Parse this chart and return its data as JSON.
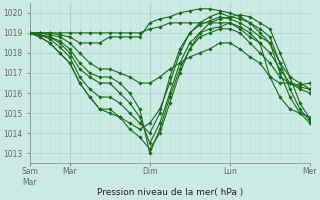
{
  "xlabel": "Pression niveau de la mer( hPa )",
  "background_color": "#cceae4",
  "grid_color_major": "#aad4cc",
  "grid_color_minor": "#bbddd8",
  "line_color": "#1a6b1a",
  "ylim": [
    1012.5,
    1020.5
  ],
  "xlim": [
    0,
    168
  ],
  "yticks": [
    1013,
    1014,
    1015,
    1016,
    1017,
    1018,
    1019,
    1020
  ],
  "day_positions": [
    0,
    24,
    72,
    120,
    168
  ],
  "day_labels": [
    "Sam|Mar",
    "Mar",
    "Dim",
    "Lun",
    "Mer"
  ],
  "series": [
    {
      "x": [
        0,
        6,
        12,
        18,
        24,
        30,
        36,
        42,
        48,
        54,
        60,
        66,
        72,
        78,
        84,
        90,
        96,
        102,
        108,
        114,
        120,
        126,
        132,
        138,
        144,
        150,
        156,
        162,
        168
      ],
      "y": [
        1019.0,
        1018.8,
        1018.5,
        1018.0,
        1017.5,
        1016.5,
        1015.8,
        1015.2,
        1015.0,
        1014.8,
        1014.2,
        1013.8,
        1013.2,
        1014.0,
        1015.5,
        1017.0,
        1018.2,
        1019.0,
        1019.5,
        1019.7,
        1019.8,
        1019.9,
        1019.8,
        1019.5,
        1019.2,
        1018.0,
        1016.8,
        1015.5,
        1014.7
      ]
    },
    {
      "x": [
        0,
        6,
        12,
        18,
        24,
        30,
        36,
        42,
        48,
        54,
        60,
        66,
        72,
        78,
        84,
        90,
        96,
        102,
        108,
        114,
        120,
        126,
        132,
        138,
        144,
        150,
        156,
        162,
        168
      ],
      "y": [
        1019.0,
        1018.8,
        1018.5,
        1018.0,
        1017.5,
        1016.5,
        1015.8,
        1015.2,
        1015.2,
        1014.8,
        1014.5,
        1014.2,
        1014.5,
        1015.2,
        1016.5,
        1018.0,
        1019.0,
        1019.5,
        1019.8,
        1020.0,
        1019.8,
        1019.7,
        1019.5,
        1019.2,
        1018.8,
        1017.5,
        1016.2,
        1015.2,
        1014.6
      ]
    },
    {
      "x": [
        0,
        6,
        12,
        18,
        24,
        30,
        36,
        42,
        48,
        54,
        60,
        66,
        72,
        78,
        84,
        90,
        96,
        102,
        108,
        114,
        120,
        126,
        132,
        138,
        144,
        150,
        156,
        162,
        168
      ],
      "y": [
        1019.0,
        1018.9,
        1018.7,
        1018.3,
        1017.8,
        1016.8,
        1016.2,
        1015.8,
        1015.8,
        1015.5,
        1015.0,
        1014.5,
        1014.0,
        1015.0,
        1016.8,
        1018.2,
        1019.0,
        1019.4,
        1019.6,
        1019.8,
        1019.7,
        1019.5,
        1019.2,
        1018.8,
        1018.5,
        1017.0,
        1015.8,
        1015.0,
        1014.5
      ]
    },
    {
      "x": [
        0,
        6,
        12,
        18,
        24,
        30,
        36,
        42,
        48,
        54,
        60,
        66,
        72,
        78,
        84,
        90,
        96,
        102,
        108,
        114,
        120,
        126,
        132,
        138,
        144,
        150,
        156,
        162,
        168
      ],
      "y": [
        1019.0,
        1018.9,
        1018.8,
        1018.5,
        1018.0,
        1017.2,
        1016.8,
        1016.5,
        1016.5,
        1016.0,
        1015.5,
        1014.8,
        1013.5,
        1014.5,
        1016.0,
        1017.5,
        1018.5,
        1019.0,
        1019.2,
        1019.3,
        1019.5,
        1019.2,
        1018.8,
        1018.5,
        1018.0,
        1017.2,
        1016.5,
        1016.2,
        1016.0
      ]
    },
    {
      "x": [
        0,
        6,
        12,
        18,
        24,
        30,
        36,
        42,
        48,
        54,
        60,
        66,
        72,
        78,
        84,
        90,
        96,
        102,
        108,
        114,
        120,
        126,
        132,
        138,
        144,
        150,
        156,
        162,
        168
      ],
      "y": [
        1019.0,
        1018.9,
        1018.8,
        1018.6,
        1018.2,
        1017.5,
        1017.0,
        1016.8,
        1016.8,
        1016.5,
        1016.0,
        1015.2,
        1013.0,
        1014.2,
        1015.8,
        1017.2,
        1018.2,
        1018.8,
        1019.0,
        1019.2,
        1019.2,
        1019.0,
        1018.5,
        1018.0,
        1017.5,
        1016.8,
        1016.5,
        1016.3,
        1016.2
      ]
    },
    {
      "x": [
        0,
        6,
        12,
        18,
        24,
        30,
        36,
        42,
        48,
        54,
        60,
        66,
        72,
        78,
        84,
        90,
        96,
        102,
        108,
        114,
        120,
        126,
        132,
        138,
        144,
        150,
        156,
        162,
        168
      ],
      "y": [
        1019.0,
        1019.0,
        1019.0,
        1018.9,
        1018.8,
        1018.5,
        1018.5,
        1018.5,
        1018.8,
        1018.8,
        1018.8,
        1018.8,
        1019.5,
        1019.7,
        1019.8,
        1020.0,
        1020.1,
        1020.2,
        1020.2,
        1020.1,
        1020.0,
        1019.8,
        1019.5,
        1019.0,
        1018.5,
        1017.5,
        1016.8,
        1016.5,
        1016.2
      ]
    },
    {
      "x": [
        0,
        6,
        12,
        18,
        24,
        30,
        36,
        42,
        48,
        54,
        60,
        66,
        72,
        78,
        84,
        90,
        96,
        102,
        108,
        114,
        120,
        126,
        132,
        138,
        144,
        150,
        156,
        162,
        168
      ],
      "y": [
        1019.0,
        1019.0,
        1019.0,
        1019.0,
        1019.0,
        1019.0,
        1019.0,
        1019.0,
        1019.0,
        1019.0,
        1019.0,
        1019.0,
        1019.2,
        1019.3,
        1019.5,
        1019.5,
        1019.5,
        1019.5,
        1019.5,
        1019.5,
        1019.5,
        1019.3,
        1019.0,
        1018.5,
        1016.8,
        1015.8,
        1015.2,
        1015.0,
        1014.8
      ]
    },
    {
      "x": [
        0,
        6,
        12,
        18,
        24,
        30,
        36,
        42,
        48,
        54,
        60,
        66,
        72,
        78,
        84,
        90,
        96,
        102,
        108,
        114,
        120,
        126,
        132,
        138,
        144,
        150,
        156,
        162,
        168
      ],
      "y": [
        1019.0,
        1019.0,
        1018.9,
        1018.8,
        1018.5,
        1018.0,
        1017.5,
        1017.2,
        1017.2,
        1017.0,
        1016.8,
        1016.5,
        1016.5,
        1016.8,
        1017.2,
        1017.5,
        1017.8,
        1018.0,
        1018.2,
        1018.5,
        1018.5,
        1018.2,
        1017.8,
        1017.5,
        1016.8,
        1016.5,
        1016.5,
        1016.4,
        1016.5
      ]
    }
  ]
}
